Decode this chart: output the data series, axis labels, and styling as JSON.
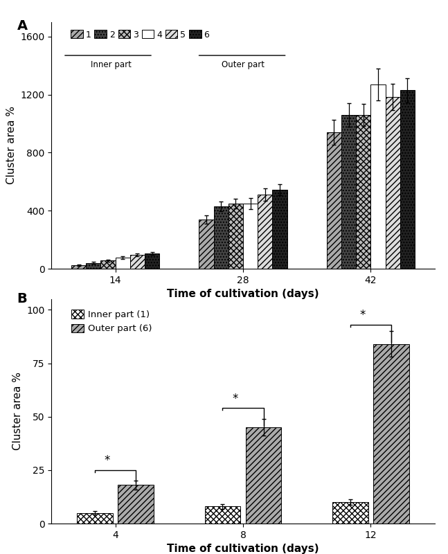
{
  "panel_A": {
    "title": "A",
    "days": [
      14,
      28,
      42
    ],
    "series": [
      {
        "label": "1",
        "hatch": "////",
        "facecolor": "#aaaaaa",
        "edgecolor": "#000000",
        "values": [
          25,
          340,
          940
        ],
        "errors": [
          5,
          28,
          85
        ]
      },
      {
        "label": "2",
        "hatch": "....",
        "facecolor": "#444444",
        "edgecolor": "#000000",
        "values": [
          40,
          430,
          1060
        ],
        "errors": [
          7,
          32,
          80
        ]
      },
      {
        "label": "3",
        "hatch": "xxxx",
        "facecolor": "#bbbbbb",
        "edgecolor": "#000000",
        "values": [
          55,
          450,
          1060
        ],
        "errors": [
          6,
          33,
          75
        ]
      },
      {
        "label": "4",
        "hatch": "",
        "facecolor": "#ffffff",
        "edgecolor": "#000000",
        "values": [
          75,
          450,
          1270
        ],
        "errors": [
          9,
          38,
          110
        ]
      },
      {
        "label": "5",
        "hatch": "////",
        "facecolor": "#dddddd",
        "edgecolor": "#000000",
        "values": [
          95,
          510,
          1185
        ],
        "errors": [
          9,
          42,
          90
        ]
      },
      {
        "label": "6",
        "hatch": "....",
        "facecolor": "#222222",
        "edgecolor": "#000000",
        "values": [
          105,
          545,
          1230
        ],
        "errors": [
          9,
          38,
          85
        ]
      }
    ],
    "ylabel": "Cluster area %",
    "xlabel": "Time of cultivation (days)",
    "ylim": [
      0,
      1700
    ],
    "yticks": [
      0,
      400,
      800,
      1200,
      1600
    ]
  },
  "panel_B": {
    "title": "B",
    "days": [
      4,
      8,
      12
    ],
    "series": [
      {
        "label": "Inner part (1)",
        "hatch": "xxxx",
        "facecolor": "#ffffff",
        "edgecolor": "#000000",
        "values": [
          5,
          8,
          10
        ],
        "errors": [
          0.8,
          1.2,
          1.2
        ]
      },
      {
        "label": "Outer part (6)",
        "hatch": "////",
        "facecolor": "#aaaaaa",
        "edgecolor": "#000000",
        "values": [
          18,
          45,
          84
        ],
        "errors": [
          2.0,
          4.0,
          6.0
        ]
      }
    ],
    "ylabel": "Cluster area %",
    "xlabel": "Time of cultivation (days)",
    "ylim": [
      0,
      105
    ],
    "yticks": [
      0,
      25,
      50,
      75,
      100
    ]
  },
  "background_color": "#ffffff",
  "border_color": "#22aa22"
}
